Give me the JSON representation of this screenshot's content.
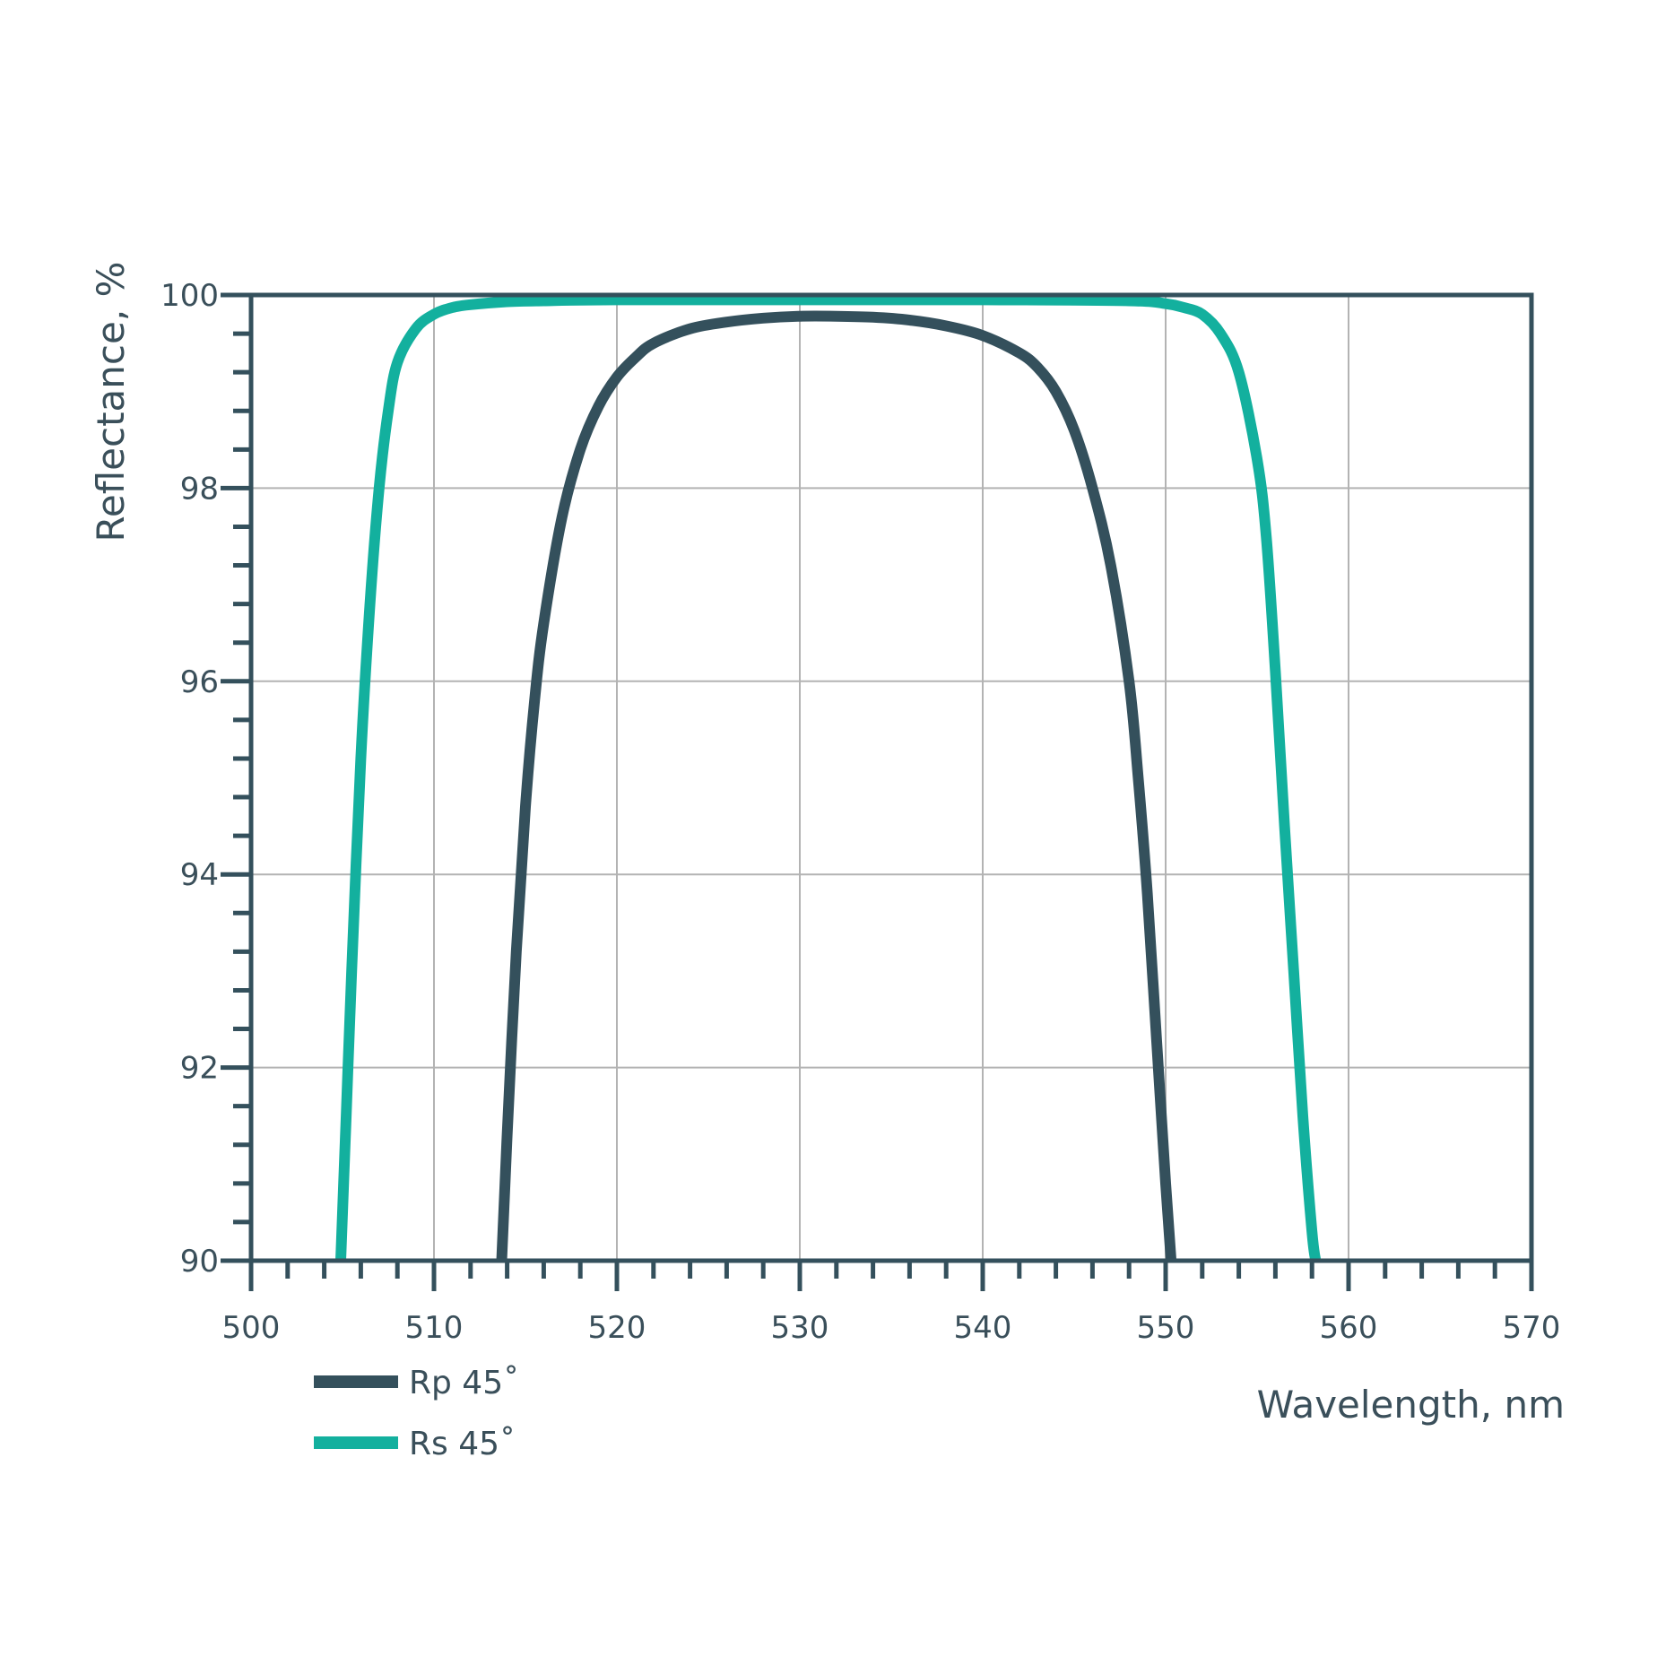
{
  "chart_data": {
    "type": "line",
    "xlabel": "Wavelength, nm",
    "ylabel": "Reflectance, %",
    "xlim": [
      500,
      570
    ],
    "ylim": [
      90,
      100
    ],
    "x_ticks": [
      500,
      510,
      520,
      530,
      540,
      550,
      560,
      570
    ],
    "y_ticks": [
      90,
      92,
      94,
      96,
      98,
      100
    ],
    "x_minor_step": 2,
    "y_minor_step": 0.4,
    "grid": true,
    "legend_position": "bottom-left",
    "series": [
      {
        "name": "Rp 45˚",
        "color": "#34505c",
        "x": [
          513.7,
          514.0,
          514.5,
          515.0,
          515.5,
          516.0,
          517.0,
          518.0,
          519.0,
          520.0,
          521.0,
          522.0,
          524.0,
          526.0,
          528.0,
          530.0,
          532.0,
          534.0,
          536.0,
          538.0,
          540.0,
          542.0,
          543.0,
          544.0,
          545.0,
          546.0,
          547.0,
          548.0,
          548.5,
          549.0,
          549.5,
          550.0,
          550.3
        ],
        "y": [
          90.0,
          91.3,
          93.2,
          94.7,
          95.8,
          96.6,
          97.7,
          98.4,
          98.85,
          99.15,
          99.35,
          99.5,
          99.65,
          99.72,
          99.76,
          99.78,
          99.78,
          99.77,
          99.74,
          99.68,
          99.58,
          99.4,
          99.25,
          99.0,
          98.6,
          98.0,
          97.2,
          96.0,
          95.0,
          93.8,
          92.3,
          90.8,
          90.0
        ]
      },
      {
        "name": "Rs 45˚",
        "color": "#13b09e",
        "x": [
          504.9,
          505.2,
          505.5,
          506.0,
          506.5,
          507.0,
          507.5,
          508.0,
          509.0,
          510.0,
          511.0,
          512.0,
          514.0,
          516.0,
          520.0,
          530.0,
          540.0,
          548.0,
          550.0,
          551.0,
          552.0,
          553.0,
          554.0,
          555.0,
          555.5,
          556.0,
          556.5,
          557.0,
          557.5,
          558.0,
          558.2
        ],
        "y": [
          90.0,
          91.5,
          93.0,
          95.2,
          96.8,
          98.0,
          98.8,
          99.3,
          99.65,
          99.8,
          99.87,
          99.9,
          99.93,
          99.94,
          99.95,
          99.95,
          99.95,
          99.94,
          99.91,
          99.87,
          99.8,
          99.6,
          99.2,
          98.3,
          97.5,
          96.1,
          94.5,
          93.0,
          91.5,
          90.3,
          90.0
        ]
      }
    ]
  }
}
